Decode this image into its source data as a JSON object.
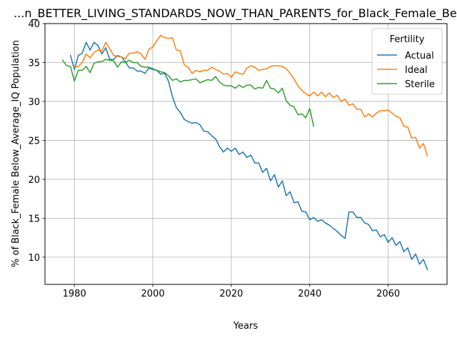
{
  "chart_data": {
    "type": "line",
    "title": "...n_BETTER_LIVING_STANDARDS_NOW_THAN_PARENTS_for_Black_Female_Belo...",
    "xlabel": "Years",
    "ylabel": "% of Black_Female Below_Average_IQ Population",
    "xlim": [
      1972.5,
      2075
    ],
    "ylim": [
      6.5,
      40
    ],
    "xticks": [
      1980,
      2000,
      2020,
      2040,
      2060
    ],
    "yticks": [
      10,
      15,
      20,
      25,
      30,
      35,
      40
    ],
    "grid": true,
    "legend": {
      "title": "Fertility",
      "placement": "top-right"
    },
    "series": [
      {
        "name": "Actual",
        "color": "#1f77b4",
        "x": [
          1979,
          1980,
          1981,
          1982,
          1983,
          1984,
          1985,
          1986,
          1987,
          1988,
          1989,
          1990,
          1991,
          1992,
          1993,
          1994,
          1995,
          1996,
          1997,
          1998,
          1999,
          2000,
          2001,
          2002,
          2003,
          2004,
          2005,
          2006,
          2007,
          2008,
          2009,
          2010,
          2011,
          2012,
          2013,
          2014,
          2015,
          2016,
          2017,
          2018,
          2019,
          2020,
          2021,
          2022,
          2023,
          2024,
          2025,
          2026,
          2027,
          2028,
          2029,
          2030,
          2031,
          2032,
          2033,
          2034,
          2035,
          2036,
          2037,
          2038,
          2039,
          2040,
          2041,
          2042,
          2043,
          2044,
          2045,
          2046,
          2047,
          2048,
          2049,
          2050,
          2051,
          2052,
          2053,
          2054,
          2055,
          2056,
          2057,
          2058,
          2059,
          2060,
          2061,
          2062,
          2063,
          2064,
          2065,
          2066,
          2067,
          2068,
          2069,
          2070
        ],
        "y": [
          35.9,
          34.1,
          35.9,
          36.2,
          37.6,
          36.6,
          37.6,
          37.2,
          36.1,
          36.9,
          35.4,
          35.4,
          35.9,
          35.7,
          35.1,
          34.3,
          34.3,
          33.9,
          33.9,
          33.6,
          34.3,
          34.1,
          34.0,
          33.5,
          33.6,
          32.6,
          30.6,
          29.2,
          28.6,
          27.7,
          27.4,
          27.2,
          27.3,
          27.0,
          26.2,
          26.1,
          25.6,
          25.2,
          24.2,
          23.5,
          24.0,
          23.6,
          24.0,
          23.2,
          23.5,
          22.8,
          23.1,
          22.1,
          22.1,
          20.9,
          21.4,
          19.8,
          20.6,
          19.0,
          19.8,
          17.9,
          18.4,
          17.0,
          17.1,
          15.9,
          15.8,
          14.8,
          15.1,
          14.6,
          14.8,
          14.4,
          14.1,
          13.7,
          13.3,
          12.8,
          12.4,
          15.8,
          15.8,
          15.1,
          15.1,
          14.4,
          14.2,
          13.4,
          13.5,
          12.6,
          12.9,
          11.9,
          12.5,
          11.5,
          12.0,
          10.7,
          11.2,
          9.7,
          10.4,
          9.1,
          9.7,
          8.4
        ]
      },
      {
        "name": "Ideal",
        "color": "#ff7f0e",
        "x": [
          1980,
          1981,
          1982,
          1983,
          1984,
          1985,
          1986,
          1987,
          1988,
          1989,
          1990,
          1991,
          1992,
          1993,
          1994,
          1995,
          1996,
          1997,
          1998,
          1999,
          2000,
          2001,
          2002,
          2003,
          2004,
          2005,
          2006,
          2007,
          2008,
          2009,
          2010,
          2011,
          2012,
          2013,
          2014,
          2015,
          2016,
          2017,
          2018,
          2019,
          2020,
          2021,
          2022,
          2023,
          2024,
          2025,
          2026,
          2027,
          2028,
          2029,
          2030,
          2031,
          2032,
          2033,
          2034,
          2035,
          2036,
          2037,
          2038,
          2039,
          2040,
          2041,
          2042,
          2043,
          2044,
          2045,
          2046,
          2047,
          2048,
          2049,
          2050,
          2051,
          2052,
          2053,
          2054,
          2055,
          2056,
          2057,
          2058,
          2059,
          2060,
          2061,
          2062,
          2063,
          2064,
          2065,
          2066,
          2067,
          2068,
          2069,
          2070
        ],
        "y": [
          34.4,
          34.5,
          35.0,
          36.1,
          35.6,
          36.3,
          36.6,
          36.5,
          37.6,
          36.8,
          35.9,
          35.8,
          35.7,
          35.5,
          36.2,
          36.2,
          36.4,
          36.1,
          35.4,
          36.7,
          37.0,
          37.8,
          38.5,
          38.2,
          38.1,
          38.2,
          36.6,
          36.5,
          34.7,
          34.4,
          33.6,
          34.0,
          33.8,
          34.0,
          34.0,
          34.4,
          34.1,
          33.9,
          33.5,
          33.6,
          33.1,
          33.8,
          33.6,
          33.5,
          34.3,
          34.6,
          34.4,
          34.0,
          34.1,
          34.2,
          34.5,
          34.6,
          34.6,
          34.5,
          34.2,
          33.6,
          32.9,
          32.0,
          31.4,
          31.0,
          30.7,
          31.2,
          30.7,
          31.2,
          30.6,
          31.1,
          30.5,
          30.8,
          30.0,
          30.3,
          29.5,
          29.7,
          29.0,
          29.0,
          28.0,
          28.4,
          28.0,
          28.5,
          28.8,
          28.8,
          28.9,
          28.5,
          28.1,
          27.9,
          26.8,
          26.7,
          25.3,
          25.4,
          24.0,
          24.6,
          23.0
        ]
      },
      {
        "name": "Sterile",
        "color": "#2ca02c",
        "x": [
          1977,
          1978,
          1979,
          1980,
          1981,
          1982,
          1983,
          1984,
          1985,
          1986,
          1987,
          1988,
          1989,
          1990,
          1991,
          1992,
          1993,
          1994,
          1995,
          1996,
          1997,
          1998,
          1999,
          2000,
          2001,
          2002,
          2003,
          2004,
          2005,
          2006,
          2007,
          2008,
          2009,
          2010,
          2011,
          2012,
          2013,
          2014,
          2015,
          2016,
          2017,
          2018,
          2019,
          2020,
          2021,
          2022,
          2023,
          2024,
          2025,
          2026,
          2027,
          2028,
          2029,
          2030,
          2031,
          2032,
          2033,
          2034,
          2035,
          2036,
          2037,
          2038,
          2039,
          2040,
          2041
        ],
        "y": [
          35.3,
          34.6,
          34.5,
          32.6,
          34.0,
          34.0,
          34.5,
          33.7,
          34.9,
          35.1,
          35.1,
          35.4,
          35.3,
          35.2,
          34.4,
          35.1,
          35.0,
          35.3,
          35.0,
          35.0,
          34.5,
          34.4,
          34.4,
          34.2,
          34.0,
          33.8,
          33.7,
          33.3,
          32.7,
          32.9,
          32.5,
          32.7,
          32.7,
          32.8,
          32.9,
          32.4,
          32.6,
          32.8,
          32.7,
          33.2,
          32.5,
          32.1,
          32.0,
          32.0,
          31.7,
          32.1,
          31.8,
          32.1,
          32.1,
          31.6,
          31.8,
          31.7,
          32.7,
          31.7,
          31.6,
          31.1,
          31.7,
          30.1,
          29.5,
          29.3,
          28.3,
          28.4,
          27.9,
          29.1,
          26.8
        ]
      }
    ]
  }
}
